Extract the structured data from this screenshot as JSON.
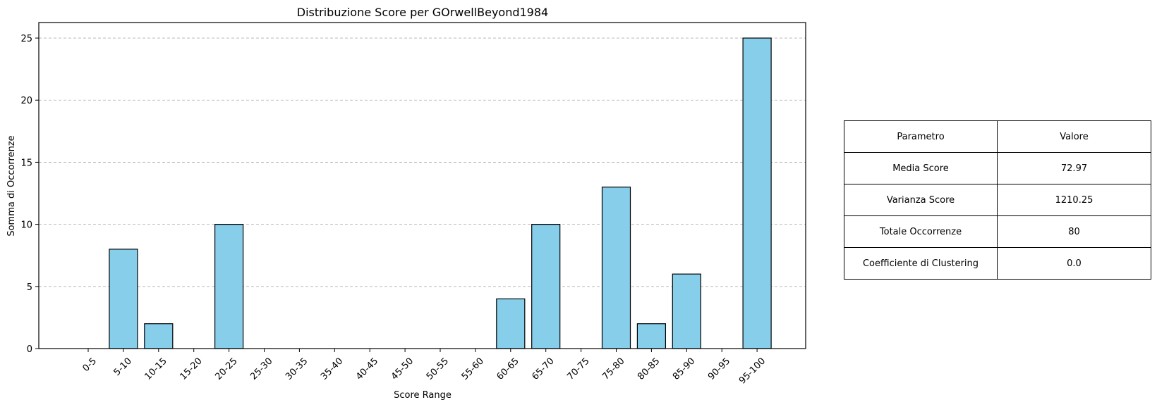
{
  "chart_data": {
    "type": "bar",
    "title": "Distribuzione Score per GOrwellBeyond1984",
    "xlabel": "Score Range",
    "ylabel": "Somma di Occorrenze",
    "categories": [
      "0-5",
      "5-10",
      "10-15",
      "15-20",
      "20-25",
      "25-30",
      "30-35",
      "35-40",
      "40-45",
      "45-50",
      "50-55",
      "55-60",
      "60-65",
      "65-70",
      "70-75",
      "75-80",
      "80-85",
      "85-90",
      "90-95",
      "95-100"
    ],
    "values": [
      0,
      8,
      2,
      0,
      10,
      0,
      0,
      0,
      0,
      0,
      0,
      0,
      4,
      10,
      0,
      13,
      2,
      6,
      0,
      25
    ],
    "ylim": [
      0,
      26.25
    ],
    "yticks": [
      0,
      5,
      10,
      15,
      20,
      25
    ],
    "grid": "y-dashed",
    "bar_color": "#87CEEB",
    "edge_color": "#000000"
  },
  "table": {
    "header": {
      "param": "Parametro",
      "value": "Valore"
    },
    "rows": [
      {
        "param": "Media Score",
        "value": "72.97"
      },
      {
        "param": "Varianza Score",
        "value": "1210.25"
      },
      {
        "param": "Totale Occorrenze",
        "value": "80"
      },
      {
        "param": "Coefficiente di Clustering",
        "value": "0.0"
      }
    ]
  }
}
